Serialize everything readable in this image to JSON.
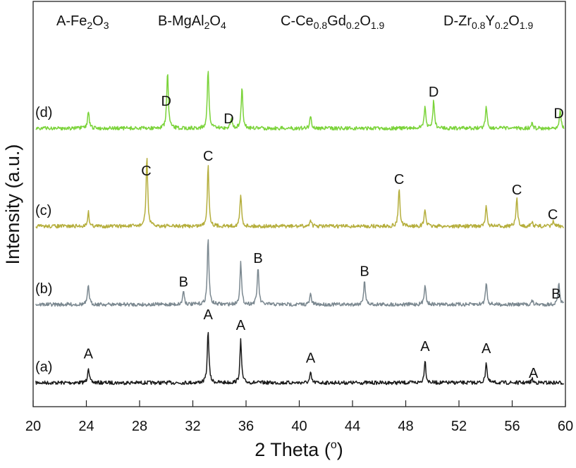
{
  "chart_data": {
    "type": "line",
    "xlabel": "2 Theta (",
    "xlabel_sup": "o",
    "xlabel_close": ")",
    "ylabel": "Intensity (a.u.)",
    "xlim": [
      20,
      60
    ],
    "x_ticks": [
      "20",
      "24",
      "28",
      "32",
      "36",
      "40",
      "44",
      "48",
      "52",
      "56",
      "60"
    ],
    "grid": false,
    "legend": [
      {
        "letter": "A",
        "formula": [
          [
            "Fe",
            "normal"
          ],
          [
            "2",
            "sub"
          ],
          [
            "O",
            "normal"
          ],
          [
            "3",
            "sub"
          ]
        ]
      },
      {
        "letter": "B",
        "formula": [
          [
            "MgAl",
            "normal"
          ],
          [
            "2",
            "sub"
          ],
          [
            "O",
            "normal"
          ],
          [
            "4",
            "sub"
          ]
        ]
      },
      {
        "letter": "C",
        "formula": [
          [
            "Ce",
            "normal"
          ],
          [
            "0.8",
            "sub"
          ],
          [
            "Gd",
            "normal"
          ],
          [
            "0.2",
            "sub"
          ],
          [
            "O",
            "normal"
          ],
          [
            "1.9",
            "sub"
          ]
        ]
      },
      {
        "letter": "D",
        "formula": [
          [
            "Zr",
            "normal"
          ],
          [
            "0.8",
            "sub"
          ],
          [
            "Y",
            "normal"
          ],
          [
            "0.2",
            "sub"
          ],
          [
            "O",
            "normal"
          ],
          [
            "1.9",
            "sub"
          ]
        ]
      }
    ],
    "series": [
      {
        "name": "(a)",
        "color": "#1a1a1a",
        "peaks": [
          {
            "x": 24.15,
            "h": 0.3
          },
          {
            "x": 33.15,
            "h": 1.0
          },
          {
            "x": 35.6,
            "h": 0.8
          },
          {
            "x": 40.85,
            "h": 0.18
          },
          {
            "x": 49.45,
            "h": 0.44
          },
          {
            "x": 54.05,
            "h": 0.4
          },
          {
            "x": 57.5,
            "h": 0.07
          }
        ],
        "labels": [
          {
            "x": 24.15,
            "text": "A"
          },
          {
            "x": 33.15,
            "text": "A"
          },
          {
            "x": 35.6,
            "text": "A"
          },
          {
            "x": 40.85,
            "text": "A"
          },
          {
            "x": 49.45,
            "text": "A"
          },
          {
            "x": 54.05,
            "text": "A"
          },
          {
            "x": 57.6,
            "text": "A"
          }
        ]
      },
      {
        "name": "(b)",
        "color": "#7b8890",
        "peaks": [
          {
            "x": 24.15,
            "h": 0.37
          },
          {
            "x": 31.3,
            "h": 0.27
          },
          {
            "x": 33.15,
            "h": 1.27
          },
          {
            "x": 35.6,
            "h": 0.8
          },
          {
            "x": 36.9,
            "h": 0.72
          },
          {
            "x": 40.85,
            "h": 0.2
          },
          {
            "x": 44.9,
            "h": 0.47
          },
          {
            "x": 49.45,
            "h": 0.4
          },
          {
            "x": 54.05,
            "h": 0.43
          },
          {
            "x": 57.5,
            "h": 0.07
          },
          {
            "x": 59.5,
            "h": 0.4
          }
        ],
        "labels": [
          {
            "x": 31.3,
            "text": "B"
          },
          {
            "x": 36.9,
            "text": "B"
          },
          {
            "x": 44.9,
            "text": "B"
          },
          {
            "x": 59.3,
            "text": "B"
          }
        ]
      },
      {
        "name": "(c)",
        "color": "#b5ae3c",
        "peaks": [
          {
            "x": 24.15,
            "h": 0.27
          },
          {
            "x": 28.55,
            "h": 1.33
          },
          {
            "x": 33.15,
            "h": 1.17
          },
          {
            "x": 35.6,
            "h": 0.6
          },
          {
            "x": 40.85,
            "h": 0.13
          },
          {
            "x": 47.5,
            "h": 0.73
          },
          {
            "x": 49.45,
            "h": 0.33
          },
          {
            "x": 54.05,
            "h": 0.37
          },
          {
            "x": 56.35,
            "h": 0.53
          },
          {
            "x": 57.5,
            "h": 0.08
          },
          {
            "x": 59.1,
            "h": 0.1
          }
        ],
        "labels": [
          {
            "x": 28.5,
            "text": "C"
          },
          {
            "x": 33.15,
            "text": "C"
          },
          {
            "x": 47.5,
            "text": "C"
          },
          {
            "x": 56.35,
            "text": "C"
          },
          {
            "x": 59.05,
            "text": "C"
          }
        ]
      },
      {
        "name": "(d)",
        "color": "#7ad339",
        "peaks": [
          {
            "x": 24.15,
            "h": 0.33
          },
          {
            "x": 30.1,
            "h": 1.07
          },
          {
            "x": 33.15,
            "h": 1.13
          },
          {
            "x": 34.9,
            "h": 0.2
          },
          {
            "x": 35.7,
            "h": 0.77
          },
          {
            "x": 40.85,
            "h": 0.23
          },
          {
            "x": 49.45,
            "h": 0.43
          },
          {
            "x": 50.1,
            "h": 0.53
          },
          {
            "x": 54.05,
            "h": 0.43
          },
          {
            "x": 57.5,
            "h": 0.1
          },
          {
            "x": 59.6,
            "h": 0.37
          }
        ],
        "labels": [
          {
            "x": 30.0,
            "text": "D"
          },
          {
            "x": 34.7,
            "text": "D"
          },
          {
            "x": 50.1,
            "text": "D"
          },
          {
            "x": 59.5,
            "text": "D"
          }
        ]
      }
    ]
  }
}
